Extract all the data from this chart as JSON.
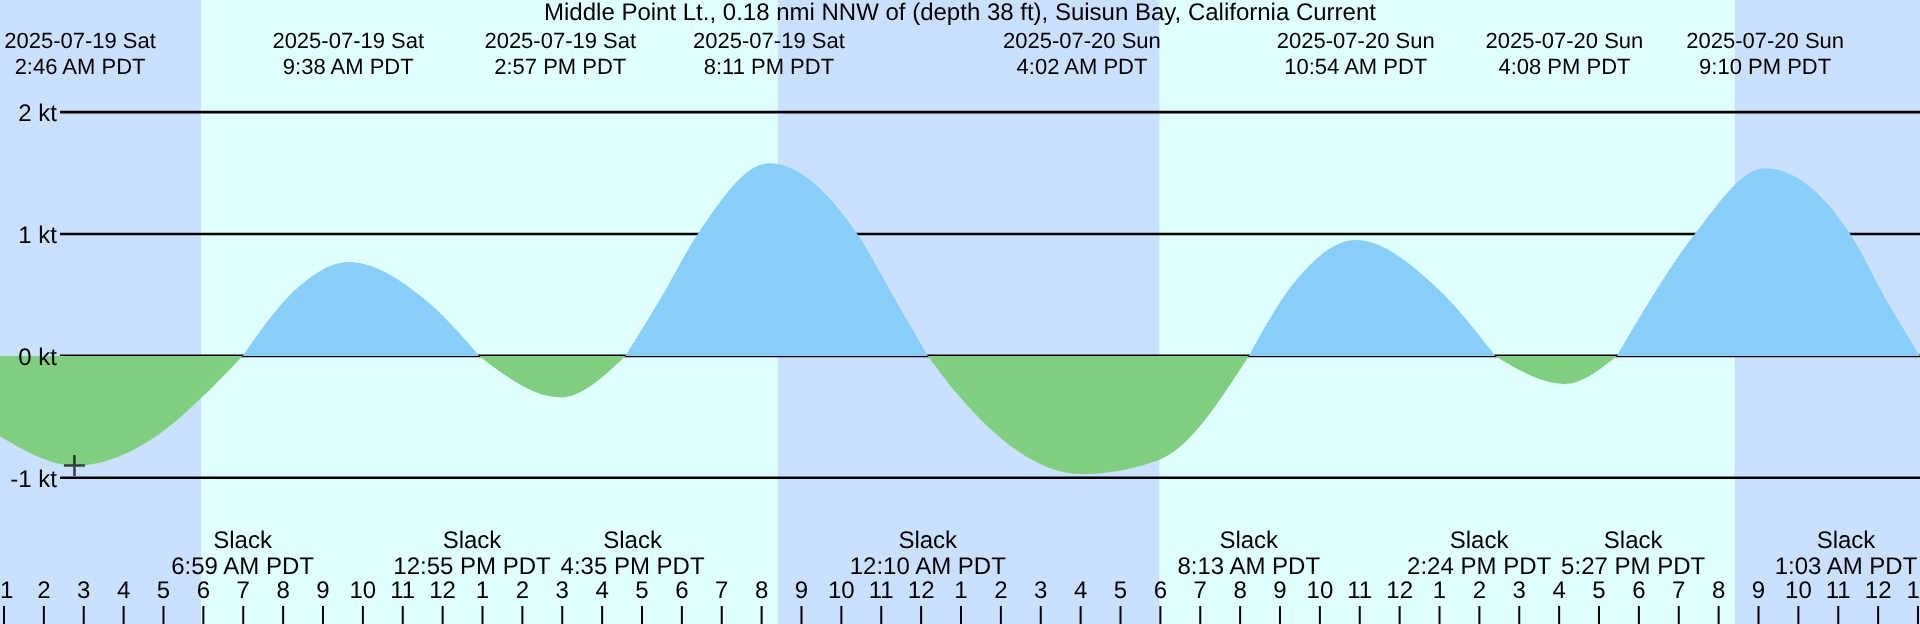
{
  "chart_data": {
    "type": "area",
    "title": "Middle Point Lt., 0.18 nmi NNW of (depth 38 ft), Suisun Bay, California Current",
    "x": [
      "2025-07-19T00:54",
      "2025-07-19T02:46",
      "2025-07-19T04:54",
      "2025-07-19T05:54",
      "2025-07-19T06:59",
      "2025-07-19T08:24",
      "2025-07-19T09:38",
      "2025-07-19T11:34",
      "2025-07-19T12:55",
      "2025-07-19T14:57",
      "2025-07-19T16:35",
      "2025-07-19T17:30",
      "2025-07-19T18:24",
      "2025-07-19T20:11",
      "2025-07-19T22:24",
      "2025-07-19T23:18",
      "2025-07-20T00:10",
      "2025-07-20T00:54",
      "2025-07-20T04:02",
      "2025-07-20T05:59",
      "2025-07-20T08:13",
      "2025-07-20T09:24",
      "2025-07-20T10:54",
      "2025-07-20T12:54",
      "2025-07-20T14:24",
      "2025-07-20T16:08",
      "2025-07-20T17:27",
      "2025-07-20T18:24",
      "2025-07-20T19:24",
      "2025-07-20T21:10",
      "2025-07-20T23:18",
      "2025-07-21T00:12",
      "2025-07-21T01:03"
    ],
    "series": [
      {
        "color": "#87cefa",
        "values": [
          null,
          null,
          null,
          null,
          0,
          0.57,
          0.77,
          0.46,
          0,
          null,
          0,
          0.49,
          1.0,
          1.58,
          1.0,
          0.49,
          0,
          null,
          null,
          null,
          0,
          0.62,
          0.95,
          0.57,
          0,
          null,
          0,
          0.52,
          1.0,
          1.54,
          1.0,
          0.46,
          0
        ]
      },
      {
        "color": "#7fcf7f",
        "values": [
          -0.66,
          -0.9,
          -0.64,
          -0.36,
          0,
          null,
          null,
          null,
          0,
          -0.34,
          0,
          null,
          null,
          null,
          null,
          null,
          0,
          -0.31,
          -0.97,
          -0.85,
          0,
          null,
          null,
          null,
          0,
          -0.23,
          0,
          null,
          null,
          null,
          null,
          null,
          null
        ]
      },
      {
        "type": "scatter",
        "marker": "cross",
        "color": "#000000",
        "x": [
          "2025-07-19T02:46"
        ],
        "values": [
          -0.9
        ]
      }
    ],
    "xlim": [
      "2025-07-19T00:54",
      "2025-07-21T01:03"
    ],
    "xticks": [
      {
        "value": "2025-07-19T01:00",
        "label": "1"
      },
      {
        "value": "2025-07-19T02:00",
        "label": "2"
      },
      {
        "value": "2025-07-19T03:00",
        "label": "3"
      },
      {
        "value": "2025-07-19T04:00",
        "label": "4"
      },
      {
        "value": "2025-07-19T05:00",
        "label": "5"
      },
      {
        "value": "2025-07-19T06:00",
        "label": "6"
      },
      {
        "value": "2025-07-19T07:00",
        "label": "7"
      },
      {
        "value": "2025-07-19T08:00",
        "label": "8"
      },
      {
        "value": "2025-07-19T09:00",
        "label": "9"
      },
      {
        "value": "2025-07-19T10:00",
        "label": "10"
      },
      {
        "value": "2025-07-19T11:00",
        "label": "11"
      },
      {
        "value": "2025-07-19T12:00",
        "label": "12"
      },
      {
        "value": "2025-07-19T13:00",
        "label": "1"
      },
      {
        "value": "2025-07-19T14:00",
        "label": "2"
      },
      {
        "value": "2025-07-19T15:00",
        "label": "3"
      },
      {
        "value": "2025-07-19T16:00",
        "label": "4"
      },
      {
        "value": "2025-07-19T17:00",
        "label": "5"
      },
      {
        "value": "2025-07-19T18:00",
        "label": "6"
      },
      {
        "value": "2025-07-19T19:00",
        "label": "7"
      },
      {
        "value": "2025-07-19T20:00",
        "label": "8"
      },
      {
        "value": "2025-07-19T21:00",
        "label": "9"
      },
      {
        "value": "2025-07-19T22:00",
        "label": "10"
      },
      {
        "value": "2025-07-19T23:00",
        "label": "11"
      },
      {
        "value": "2025-07-20T00:00",
        "label": "12"
      },
      {
        "value": "2025-07-20T01:00",
        "label": "1"
      },
      {
        "value": "2025-07-20T02:00",
        "label": "2"
      },
      {
        "value": "2025-07-20T03:00",
        "label": "3"
      },
      {
        "value": "2025-07-20T04:00",
        "label": "4"
      },
      {
        "value": "2025-07-20T05:00",
        "label": "5"
      },
      {
        "value": "2025-07-20T06:00",
        "label": "6"
      },
      {
        "value": "2025-07-20T07:00",
        "label": "7"
      },
      {
        "value": "2025-07-20T08:00",
        "label": "8"
      },
      {
        "value": "2025-07-20T09:00",
        "label": "9"
      },
      {
        "value": "2025-07-20T10:00",
        "label": "10"
      },
      {
        "value": "2025-07-20T11:00",
        "label": "11"
      },
      {
        "value": "2025-07-20T12:00",
        "label": "12"
      },
      {
        "value": "2025-07-20T13:00",
        "label": "1"
      },
      {
        "value": "2025-07-20T14:00",
        "label": "2"
      },
      {
        "value": "2025-07-20T15:00",
        "label": "3"
      },
      {
        "value": "2025-07-20T16:00",
        "label": "4"
      },
      {
        "value": "2025-07-20T17:00",
        "label": "5"
      },
      {
        "value": "2025-07-20T18:00",
        "label": "6"
      },
      {
        "value": "2025-07-20T19:00",
        "label": "7"
      },
      {
        "value": "2025-07-20T20:00",
        "label": "8"
      },
      {
        "value": "2025-07-20T21:00",
        "label": "9"
      },
      {
        "value": "2025-07-20T22:00",
        "label": "10"
      },
      {
        "value": "2025-07-20T23:00",
        "label": "11"
      },
      {
        "value": "2025-07-21T00:00",
        "label": "12"
      },
      {
        "value": "2025-07-21T01:00",
        "label": "1"
      }
    ],
    "ylim": [
      -2.2,
      2.92
    ],
    "yticks": [
      {
        "value": -1,
        "label": "-1 kt"
      },
      {
        "value": 0,
        "label": "0 kt"
      },
      {
        "value": 1,
        "label": "1 kt"
      },
      {
        "value": 2,
        "label": "2 kt"
      }
    ],
    "grid": "y",
    "bands": [
      {
        "axis": "x",
        "from": "2025-07-19T00:54",
        "to": "2025-07-19T05:57",
        "color": "#cae0ff"
      },
      {
        "axis": "x",
        "from": "2025-07-19T05:57",
        "to": "2025-07-19T20:24",
        "color": "#e0ffff"
      },
      {
        "axis": "x",
        "from": "2025-07-19T20:24",
        "to": "2025-07-20T05:59",
        "color": "#cae0ff"
      },
      {
        "axis": "x",
        "from": "2025-07-20T05:59",
        "to": "2025-07-20T20:24",
        "color": "#e0ffff"
      },
      {
        "axis": "x",
        "from": "2025-07-20T20:24",
        "to": "2025-07-21T01:03",
        "color": "#cae0ff"
      }
    ],
    "x2lim": [
      "2025-07-19T00:54",
      "2025-07-21T01:03"
    ],
    "x2ticks": [
      {
        "value": "2025-07-19T02:46",
        "label": "2025-07-19 Sat\n2:46 AM PDT"
      },
      {
        "value": "2025-07-19T09:38",
        "label": "2025-07-19 Sat\n9:38 AM PDT"
      },
      {
        "value": "2025-07-19T14:57",
        "label": "2025-07-19 Sat\n2:57 PM PDT"
      },
      {
        "value": "2025-07-19T20:11",
        "label": "2025-07-19 Sat\n8:11 PM PDT"
      },
      {
        "value": "2025-07-20T04:02",
        "label": "2025-07-20 Sun\n4:02 AM PDT"
      },
      {
        "value": "2025-07-20T10:54",
        "label": "2025-07-20 Sun\n10:54 AM PDT"
      },
      {
        "value": "2025-07-20T16:08",
        "label": "2025-07-20 Sun\n4:08 PM PDT"
      },
      {
        "value": "2025-07-20T21:10",
        "label": "2025-07-20 Sun\n9:10 PM PDT"
      }
    ],
    "annotations": [
      "Slack\n6:59 AM PDT",
      "Slack\n12:55 PM PDT",
      "Slack\n4:35 PM PDT",
      "Slack\n12:10 AM PDT",
      "Slack\n8:13 AM PDT",
      "Slack\n2:24 PM PDT",
      "Slack\n5:27 PM PDT",
      "Slack\n1:03 AM PDT"
    ]
  }
}
